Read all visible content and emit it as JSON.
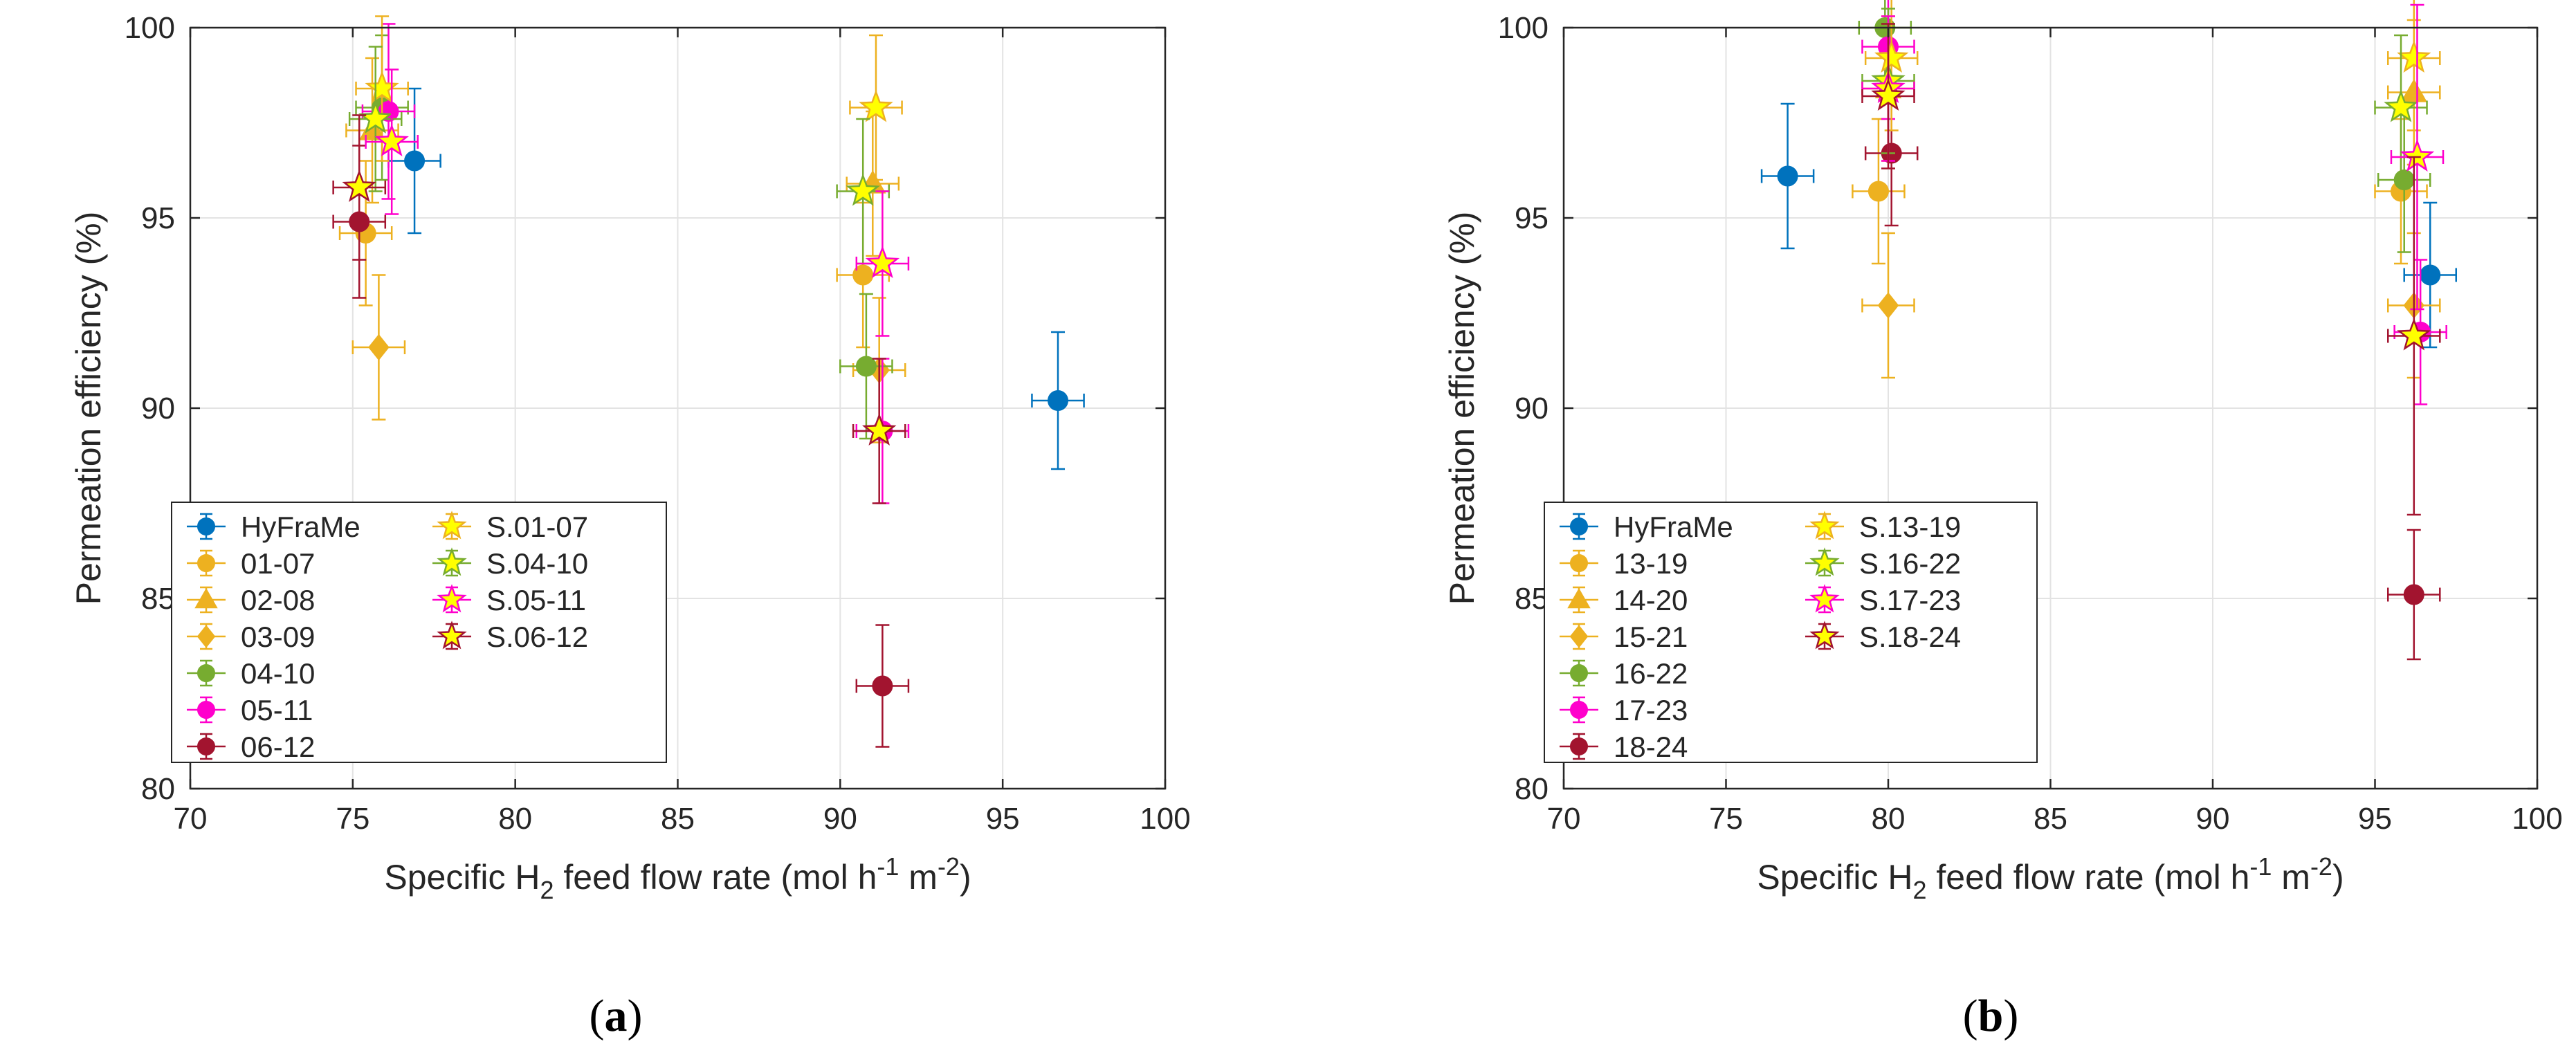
{
  "chart_data": [
    {
      "panel": "a",
      "caption": {
        "open": "(",
        "letter": "a",
        "close": ")"
      },
      "type": "scatter",
      "xlabel": {
        "pre": "Specific H",
        "sub": "2",
        "mid": " feed flow rate (mol h",
        "sup1": "-1",
        "mid2": " m",
        "sup2": "-2",
        "post": ")"
      },
      "ylabel": "Permeation efficiency (%)",
      "xlim": [
        70,
        100
      ],
      "ylim": [
        80,
        100
      ],
      "xticks": [
        70,
        75,
        80,
        85,
        90,
        95,
        100
      ],
      "yticks": [
        80,
        85,
        90,
        95,
        100
      ],
      "grid": true,
      "legend_position": "bottom-left",
      "legend_columns": 2,
      "series": [
        {
          "name": "HyFraMe",
          "marker": "circle",
          "color": "#0072BD",
          "points": [
            {
              "x": 76.9,
              "y": 96.5,
              "xerr": 0.8,
              "yerr": 1.9
            },
            {
              "x": 96.7,
              "y": 90.2,
              "xerr": 0.8,
              "yerr": 1.8
            }
          ]
        },
        {
          "name": "01-07",
          "marker": "circle",
          "color": "#EDB120",
          "points": [
            {
              "x": 75.4,
              "y": 94.6,
              "xerr": 0.8,
              "yerr": 1.9
            },
            {
              "x": 90.7,
              "y": 93.5,
              "xerr": 0.8,
              "yerr": 1.9
            }
          ]
        },
        {
          "name": "02-08",
          "marker": "triangle",
          "color": "#EDB120",
          "points": [
            {
              "x": 75.6,
              "y": 97.3,
              "xerr": 0.8,
              "yerr": 1.9
            },
            {
              "x": 91.0,
              "y": 95.9,
              "xerr": 0.8,
              "yerr": 1.9
            }
          ]
        },
        {
          "name": "03-09",
          "marker": "diamond",
          "color": "#EDB120",
          "points": [
            {
              "x": 75.8,
              "y": 91.6,
              "xerr": 0.8,
              "yerr": 1.9
            },
            {
              "x": 91.2,
              "y": 91.0,
              "xerr": 0.8,
              "yerr": 1.9
            }
          ]
        },
        {
          "name": "04-10",
          "marker": "circle",
          "color": "#77AC30",
          "points": [
            {
              "x": 75.9,
              "y": 97.9,
              "xerr": 0.8,
              "yerr": 1.9
            },
            {
              "x": 90.8,
              "y": 91.1,
              "xerr": 0.8,
              "yerr": 1.9
            }
          ]
        },
        {
          "name": "05-11",
          "marker": "circle",
          "color": "#FF00CC",
          "points": [
            {
              "x": 76.1,
              "y": 97.8,
              "xerr": 0.8,
              "yerr": 2.3
            },
            {
              "x": 91.3,
              "y": 89.4,
              "xerr": 0.8,
              "yerr": 1.9
            }
          ]
        },
        {
          "name": "06-12",
          "marker": "circle",
          "color": "#A2142F",
          "points": [
            {
              "x": 75.2,
              "y": 94.9,
              "xerr": 0.8,
              "yerr": 2.0
            },
            {
              "x": 91.3,
              "y": 82.7,
              "xerr": 0.8,
              "yerr": 1.6
            }
          ]
        },
        {
          "name": "S.01-07",
          "marker": "star",
          "color": "#FFFF00",
          "stroke": "#EDB120",
          "points": [
            {
              "x": 75.9,
              "y": 98.4,
              "xerr": 0.8,
              "yerr": 1.9
            },
            {
              "x": 91.1,
              "y": 97.9,
              "xerr": 0.8,
              "yerr": 1.9
            }
          ]
        },
        {
          "name": "S.04-10",
          "marker": "star",
          "color": "#FFFF00",
          "stroke": "#77AC30",
          "points": [
            {
              "x": 75.7,
              "y": 97.6,
              "xerr": 0.8,
              "yerr": 1.9
            },
            {
              "x": 90.7,
              "y": 95.7,
              "xerr": 0.8,
              "yerr": 1.9
            }
          ]
        },
        {
          "name": "S.05-11",
          "marker": "star",
          "color": "#FFFF00",
          "stroke": "#FF00CC",
          "points": [
            {
              "x": 76.2,
              "y": 97.0,
              "xerr": 0.8,
              "yerr": 1.9
            },
            {
              "x": 91.3,
              "y": 93.8,
              "xerr": 0.8,
              "yerr": 1.9
            }
          ]
        },
        {
          "name": "S.06-12",
          "marker": "star",
          "color": "#FFFF00",
          "stroke": "#A2142F",
          "points": [
            {
              "x": 75.2,
              "y": 95.8,
              "xerr": 0.8,
              "yerr": 1.9
            },
            {
              "x": 91.2,
              "y": 89.4,
              "xerr": 0.8,
              "yerr": 1.9
            }
          ]
        }
      ]
    },
    {
      "panel": "b",
      "caption": {
        "open": "(",
        "letter": "b",
        "close": ")"
      },
      "type": "scatter",
      "xlabel": {
        "pre": "Specific H",
        "sub": "2",
        "mid": " feed flow rate (mol h",
        "sup1": "-1",
        "mid2": " m",
        "sup2": "-2",
        "post": ")"
      },
      "ylabel": "Permeation efficiency (%)",
      "xlim": [
        70,
        100
      ],
      "ylim": [
        80,
        100
      ],
      "xticks": [
        70,
        75,
        80,
        85,
        90,
        95,
        100
      ],
      "yticks": [
        80,
        85,
        90,
        95,
        100
      ],
      "grid": true,
      "legend_position": "bottom-left",
      "legend_columns": 2,
      "series": [
        {
          "name": "HyFraMe",
          "marker": "circle",
          "color": "#0072BD",
          "points": [
            {
              "x": 76.9,
              "y": 96.1,
              "xerr": 0.8,
              "yerr": 1.9
            },
            {
              "x": 96.7,
              "y": 93.5,
              "xerr": 0.8,
              "yerr": 1.9
            }
          ]
        },
        {
          "name": "13-19",
          "marker": "circle",
          "color": "#EDB120",
          "points": [
            {
              "x": 79.7,
              "y": 95.7,
              "xerr": 0.8,
              "yerr": 1.9
            },
            {
              "x": 95.8,
              "y": 95.7,
              "xerr": 0.8,
              "yerr": 1.9
            }
          ]
        },
        {
          "name": "14-20",
          "marker": "triangle",
          "color": "#EDB120",
          "points": [
            {
              "x": 80.0,
              "y": 98.4,
              "xerr": 0.8,
              "yerr": 1.9
            },
            {
              "x": 96.2,
              "y": 98.3,
              "xerr": 0.8,
              "yerr": 1.9
            }
          ]
        },
        {
          "name": "15-21",
          "marker": "diamond",
          "color": "#EDB120",
          "points": [
            {
              "x": 80.0,
              "y": 92.7,
              "xerr": 0.8,
              "yerr": 1.9
            },
            {
              "x": 96.2,
              "y": 92.7,
              "xerr": 0.8,
              "yerr": 1.9
            }
          ]
        },
        {
          "name": "16-22",
          "marker": "circle",
          "color": "#77AC30",
          "points": [
            {
              "x": 79.9,
              "y": 100.0,
              "xerr": 0.8,
              "yerr": 1.9
            },
            {
              "x": 95.9,
              "y": 96.0,
              "xerr": 0.8,
              "yerr": 1.9
            }
          ]
        },
        {
          "name": "17-23",
          "marker": "circle",
          "color": "#FF00CC",
          "points": [
            {
              "x": 80.0,
              "y": 99.5,
              "xerr": 0.8,
              "yerr": 1.9
            },
            {
              "x": 96.4,
              "y": 92.0,
              "xerr": 0.8,
              "yerr": 1.9
            }
          ]
        },
        {
          "name": "18-24",
          "marker": "circle",
          "color": "#A2142F",
          "points": [
            {
              "x": 80.1,
              "y": 96.7,
              "xerr": 0.8,
              "yerr": 1.9
            },
            {
              "x": 96.2,
              "y": 85.1,
              "xerr": 0.8,
              "yerr": 1.7
            }
          ]
        },
        {
          "name": "S.13-19",
          "marker": "star",
          "color": "#FFFF00",
          "stroke": "#EDB120",
          "points": [
            {
              "x": 80.1,
              "y": 99.2,
              "xerr": 0.8,
              "yerr": 1.9
            },
            {
              "x": 96.2,
              "y": 99.2,
              "xerr": 0.8,
              "yerr": 1.9
            }
          ]
        },
        {
          "name": "S.16-22",
          "marker": "star",
          "color": "#FFFF00",
          "stroke": "#77AC30",
          "points": [
            {
              "x": 80.0,
              "y": 98.6,
              "xerr": 0.8,
              "yerr": 1.9
            },
            {
              "x": 95.8,
              "y": 97.9,
              "xerr": 0.8,
              "yerr": 1.9
            }
          ]
        },
        {
          "name": "S.17-23",
          "marker": "star",
          "color": "#FFFF00",
          "stroke": "#FF00CC",
          "points": [
            {
              "x": 80.0,
              "y": 98.4,
              "xerr": 0.8,
              "yerr": 1.9
            },
            {
              "x": 96.3,
              "y": 96.6,
              "xerr": 0.8,
              "yerr": 4.0
            }
          ]
        },
        {
          "name": "S.18-24",
          "marker": "star",
          "color": "#FFFF00",
          "stroke": "#A2142F",
          "points": [
            {
              "x": 80.0,
              "y": 98.2,
              "xerr": 0.8,
              "yerr": 1.9
            },
            {
              "x": 96.2,
              "y": 91.9,
              "xerr": 0.8,
              "yerr": 4.7
            }
          ]
        }
      ]
    }
  ]
}
